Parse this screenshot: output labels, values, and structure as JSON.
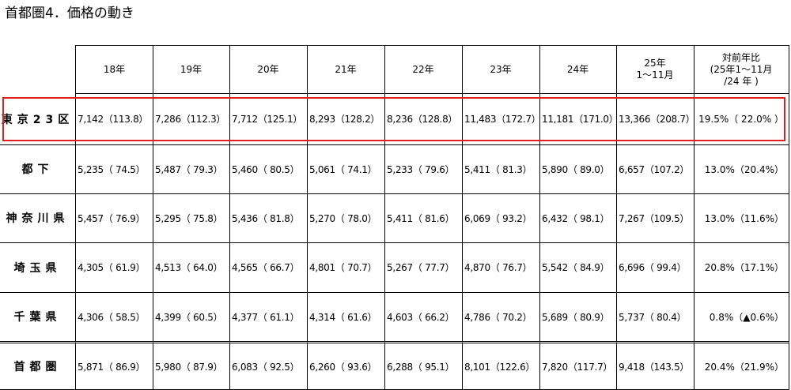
{
  "title": "首都圏4．価格の動き",
  "table": {
    "header": [
      [
        "18年"
      ],
      [
        "19年"
      ],
      [
        "20年"
      ],
      [
        "21年"
      ],
      [
        "22年"
      ],
      [
        "23年"
      ],
      [
        "24年"
      ],
      [
        "25年",
        "1～11月"
      ],
      [
        "対前年比",
        "(25年1～11月",
        "/24 年 )"
      ]
    ],
    "rows": [
      {
        "label": "東京23区",
        "cells": [
          "7,142（113.8）",
          "7,286（112.3）",
          "7,712（125.1）",
          "8,293（128.2）",
          "8,236（128.8）",
          "11,483（172.7）",
          "11,181（171.0）",
          "13,366（208.7）",
          "19.5%（ 22.0% ）"
        ]
      },
      {
        "label": "都下",
        "cells": [
          "5,235（ 74.5）",
          "5,487（ 79.3）",
          "5,460（ 80.5）",
          "5,061（ 74.1）",
          "5,233（ 79.6）",
          "5,411（ 81.3）",
          "5,890（ 89.0）",
          "6,657（107.2）",
          "13.0%（20.4%）"
        ]
      },
      {
        "label": "神奈川県",
        "cells": [
          "5,457（ 76.9）",
          "5,295（ 75.8）",
          "5,436（ 81.8）",
          "5,270（ 78.0）",
          "5,411（ 81.6）",
          "6,069（ 93.2）",
          "6,432（ 98.1）",
          "7,267（109.5）",
          "13.0%（11.6%）"
        ]
      },
      {
        "label": "埼玉県",
        "cells": [
          "4,305（ 61.9）",
          "4,513（ 64.0）",
          "4,565（ 66.7）",
          "4,801（ 70.7）",
          "5,267（ 77.7）",
          "4,870（ 76.7）",
          "5,542（ 84.9）",
          "6,696（ 99.4）",
          "20.8%（17.1%）"
        ]
      },
      {
        "label": "千葉県",
        "cells": [
          "4,306（ 58.5）",
          "4,399（ 60.5）",
          "4,377（ 61.1）",
          "4,314（ 61.6）",
          "4,603（ 66.2）",
          "4,786（ 70.2）",
          "5,689（ 80.9）",
          "5,737（ 80.4）",
          "0.8%（▲0.6%）"
        ]
      },
      {
        "label": "首都圏",
        "cells": [
          "5,871（ 86.9）",
          "5,980（ 87.9）",
          "6,083（ 92.5）",
          "6,260（ 93.6）",
          "6,288（ 95.1）",
          "8,101（122.6）",
          "7,820（117.7）",
          "9,418（143.5）",
          "20.4%（21.9%）"
        ]
      }
    ]
  }
}
